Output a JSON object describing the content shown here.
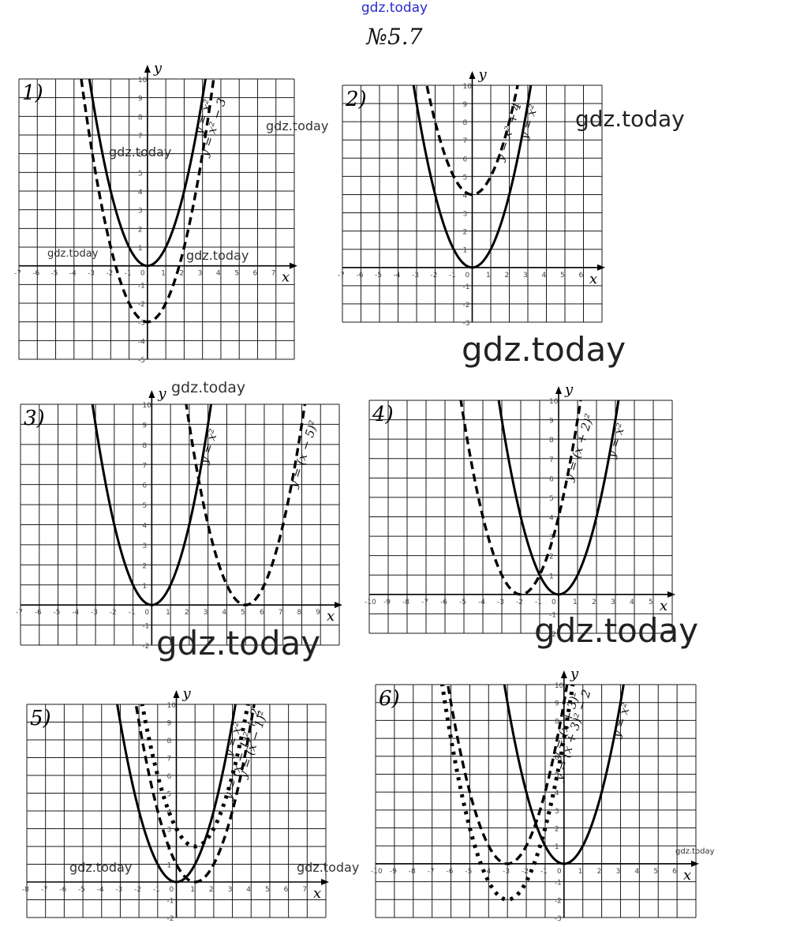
{
  "header": {
    "watermark": "gdz.today",
    "task_number": "№5.7"
  },
  "watermarks": [
    "gdz.today",
    "gdz.today",
    "gdz.today",
    "gdz.today",
    "gdz.today",
    "gdz.today",
    "gdz.today",
    "gdz.today",
    "gdz.today",
    "gdz.today",
    "gdz.today",
    "gdz.today"
  ],
  "chart_data": [
    {
      "type": "line",
      "panel_label": "1)",
      "xlabel": "x",
      "ylabel": "y",
      "xlim": [
        -7,
        8
      ],
      "ylim": [
        -5,
        10
      ],
      "grid": true,
      "series": [
        {
          "name": "y = x²",
          "style": "solid",
          "h": 0,
          "k": 0,
          "label": "y = x²"
        },
        {
          "name": "y = x² − 3",
          "style": "dashed",
          "h": 0,
          "k": -3,
          "label": "y = x² − 3"
        }
      ]
    },
    {
      "type": "line",
      "panel_label": "2)",
      "xlabel": "x",
      "ylabel": "y",
      "xlim": [
        -7,
        7
      ],
      "ylim": [
        -3,
        10
      ],
      "grid": true,
      "series": [
        {
          "name": "y = x²",
          "style": "solid",
          "h": 0,
          "k": 0,
          "label": "y = x²"
        },
        {
          "name": "y = x² + 4",
          "style": "dashed",
          "h": 0,
          "k": 4,
          "label": "y = x² + 4"
        }
      ]
    },
    {
      "type": "line",
      "panel_label": "3)",
      "xlabel": "x",
      "ylabel": "y",
      "xlim": [
        -7,
        10
      ],
      "ylim": [
        -2,
        10
      ],
      "grid": true,
      "series": [
        {
          "name": "y = x²",
          "style": "solid",
          "h": 0,
          "k": 0,
          "label": "y = x²"
        },
        {
          "name": "y = (x − 5)²",
          "style": "dashed",
          "h": 5,
          "k": 0,
          "label": "y = (x − 5)²"
        }
      ]
    },
    {
      "type": "line",
      "panel_label": "4)",
      "xlabel": "x",
      "ylabel": "y",
      "xlim": [
        -10,
        6
      ],
      "ylim": [
        -2,
        10
      ],
      "grid": true,
      "series": [
        {
          "name": "y = x²",
          "style": "solid",
          "h": 0,
          "k": 0,
          "label": "y = x²"
        },
        {
          "name": "y = (x + 2)²",
          "style": "dashed",
          "h": -2,
          "k": 0,
          "label": "y = (x + 2)²"
        }
      ]
    },
    {
      "type": "line",
      "panel_label": "5)",
      "xlabel": "x",
      "ylabel": "y",
      "xlim": [
        -8,
        8
      ],
      "ylim": [
        -2,
        10
      ],
      "grid": true,
      "series": [
        {
          "name": "y = x²",
          "style": "solid",
          "h": 0,
          "k": 0,
          "label": "y = x²"
        },
        {
          "name": "y = (x − 1)²",
          "style": "dashed",
          "h": 1,
          "k": 0,
          "label": "y = (x − 1)²"
        },
        {
          "name": "y = (x − 1)² + 2",
          "style": "dotted",
          "h": 1,
          "k": 2,
          "label": "y = (x − 1)² + 2"
        }
      ]
    },
    {
      "type": "line",
      "panel_label": "6)",
      "xlabel": "x",
      "ylabel": "y",
      "xlim": [
        -10,
        7
      ],
      "ylim": [
        -3,
        10
      ],
      "grid": true,
      "series": [
        {
          "name": "y = x²",
          "style": "solid",
          "h": 0,
          "k": 0,
          "label": "y = x²"
        },
        {
          "name": "y = (x + 3)²",
          "style": "dashed",
          "h": -3,
          "k": 0,
          "label": "y = (x + 3)²"
        },
        {
          "name": "y = (x + 3)² − 2",
          "style": "dotted",
          "h": -3,
          "k": -2,
          "label": "y = (x + 3)² − 2"
        }
      ]
    }
  ]
}
